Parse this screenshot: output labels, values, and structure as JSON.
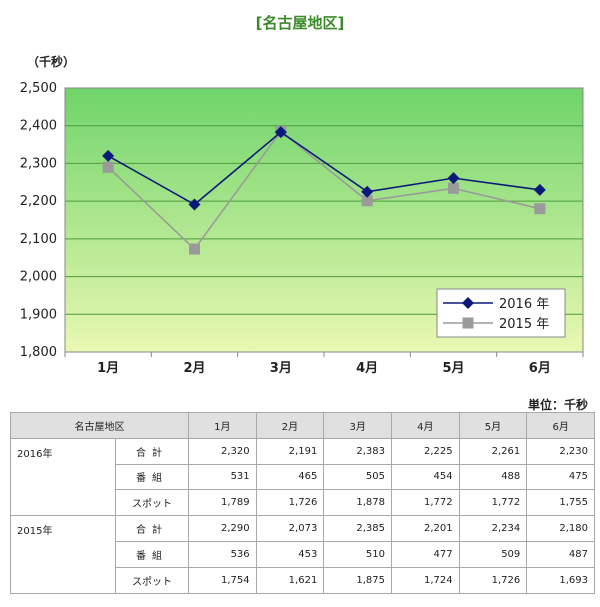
{
  "page_title": "[名古屋地区]",
  "y_unit": "（千秒）",
  "table_unit": "単位：千秒",
  "chart_data": {
    "type": "line",
    "categories": [
      "1月",
      "2月",
      "3月",
      "4月",
      "5月",
      "6月"
    ],
    "y_ticks": [
      "1,800",
      "1,900",
      "2,000",
      "2,100",
      "2,200",
      "2,300",
      "2,400",
      "2,500"
    ],
    "ylim": [
      1800,
      2500
    ],
    "grid": true,
    "legend_position": "bottom-right",
    "series": [
      {
        "name": "2016 年",
        "values": [
          2320,
          2191,
          2383,
          2225,
          2261,
          2230
        ],
        "color": "#0b1a7a",
        "marker": "diamond"
      },
      {
        "name": "2015 年",
        "values": [
          2290,
          2073,
          2385,
          2201,
          2234,
          2180
        ],
        "color": "#9a9a9a",
        "marker": "square"
      }
    ],
    "background_gradient": [
      "#6fd46a",
      "#e9f8b2"
    ]
  },
  "table": {
    "header": [
      "名古屋地区",
      "1月",
      "2月",
      "3月",
      "4月",
      "5月",
      "6月"
    ],
    "groups": [
      {
        "year": "2016年",
        "rows": [
          {
            "label": "合計",
            "values": [
              "2,320",
              "2,191",
              "2,383",
              "2,225",
              "2,261",
              "2,230"
            ]
          },
          {
            "label": "番組",
            "values": [
              "531",
              "465",
              "505",
              "454",
              "488",
              "475"
            ]
          },
          {
            "label": "スポット",
            "values": [
              "1,789",
              "1,726",
              "1,878",
              "1,772",
              "1,772",
              "1,755"
            ]
          }
        ]
      },
      {
        "year": "2015年",
        "rows": [
          {
            "label": "合計",
            "values": [
              "2,290",
              "2,073",
              "2,385",
              "2,201",
              "2,234",
              "2,180"
            ]
          },
          {
            "label": "番組",
            "values": [
              "536",
              "453",
              "510",
              "477",
              "509",
              "487"
            ]
          },
          {
            "label": "スポット",
            "values": [
              "1,754",
              "1,621",
              "1,875",
              "1,724",
              "1,726",
              "1,693"
            ]
          }
        ]
      }
    ]
  }
}
